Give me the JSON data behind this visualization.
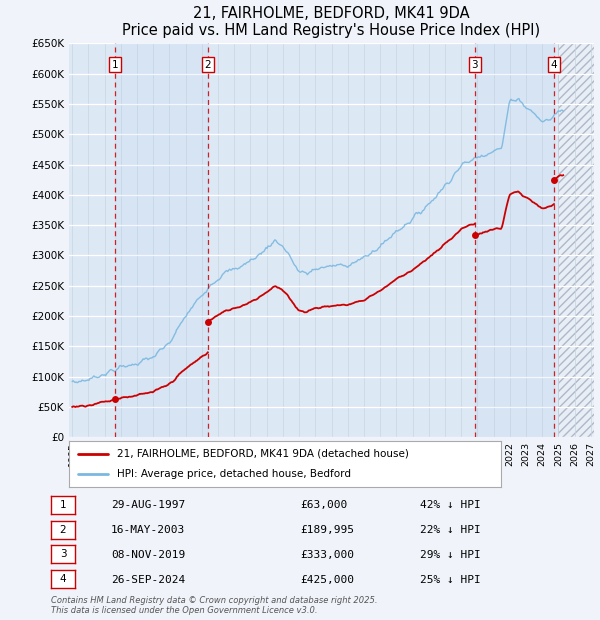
{
  "title": "21, FAIRHOLME, BEDFORD, MK41 9DA",
  "subtitle": "Price paid vs. HM Land Registry's House Price Index (HPI)",
  "ylim": [
    0,
    650000
  ],
  "yticks": [
    0,
    50000,
    100000,
    150000,
    200000,
    250000,
    300000,
    350000,
    400000,
    450000,
    500000,
    550000,
    600000,
    650000
  ],
  "ytick_labels": [
    "£0",
    "£50K",
    "£100K",
    "£150K",
    "£200K",
    "£250K",
    "£300K",
    "£350K",
    "£400K",
    "£450K",
    "£500K",
    "£550K",
    "£600K",
    "£650K"
  ],
  "xlim_start": 1994.8,
  "xlim_end": 2027.2,
  "hpi_color": "#7ab8e0",
  "price_color": "#cc0000",
  "vline_color": "#cc0000",
  "transactions": [
    {
      "num": 1,
      "date": "29-AUG-1997",
      "year": 1997.66,
      "price": 63000,
      "pct": "42%",
      "label": "1"
    },
    {
      "num": 2,
      "date": "16-MAY-2003",
      "year": 2003.37,
      "price": 189995,
      "pct": "22%",
      "label": "2"
    },
    {
      "num": 3,
      "date": "08-NOV-2019",
      "year": 2019.85,
      "price": 333000,
      "pct": "29%",
      "label": "3"
    },
    {
      "num": 4,
      "date": "26-SEP-2024",
      "year": 2024.73,
      "price": 425000,
      "pct": "25%",
      "label": "4"
    }
  ],
  "legend_line1": "21, FAIRHOLME, BEDFORD, MK41 9DA (detached house)",
  "legend_line2": "HPI: Average price, detached house, Bedford",
  "footer": "Contains HM Land Registry data © Crown copyright and database right 2025.\nThis data is licensed under the Open Government Licence v3.0.",
  "hatch_start": 2025.0,
  "bg_color": "#f0f4fa",
  "plot_bg": "#dde8f5"
}
